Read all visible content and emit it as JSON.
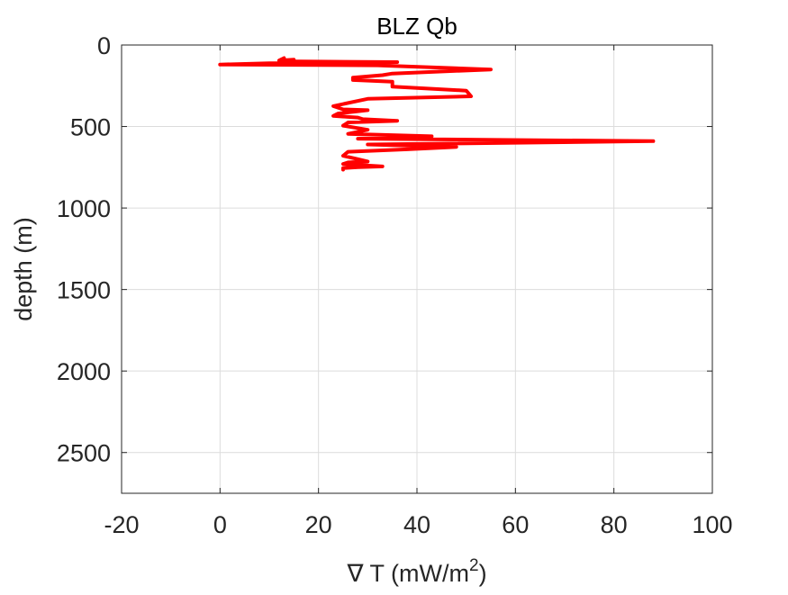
{
  "chart_data": {
    "type": "line",
    "title": "BLZ Qb",
    "xlabel": "∇ T (mW/m",
    "xlabel_sup": "2",
    "xlabel_suffix": ")",
    "ylabel": "depth (m)",
    "xlim": [
      -20,
      100
    ],
    "ylim": [
      0,
      2750
    ],
    "y_reversed": true,
    "x_ticks": [
      -20,
      0,
      20,
      40,
      60,
      80,
      100
    ],
    "x_tick_labels": [
      "-20",
      "0",
      "20",
      "40",
      "60",
      "80",
      "100"
    ],
    "y_ticks": [
      0,
      500,
      1000,
      1500,
      2000,
      2500
    ],
    "y_tick_labels": [
      "0",
      "500",
      "1000",
      "1500",
      "2000",
      "2500"
    ],
    "grid": true,
    "line_color": "#ff0000",
    "series": [
      {
        "x": [
          13,
          12,
          15,
          13,
          36,
          10,
          0,
          32,
          55,
          35,
          33,
          27,
          27,
          35,
          35,
          50,
          51,
          30,
          23,
          25,
          30,
          24,
          23,
          28,
          29,
          36,
          26,
          25,
          30,
          26,
          43,
          28,
          88,
          30,
          48,
          38,
          26,
          25,
          28,
          30,
          26,
          25,
          33,
          28,
          25,
          25
        ],
        "y": [
          80,
          95,
          90,
          100,
          105,
          112,
          120,
          125,
          150,
          175,
          185,
          200,
          215,
          225,
          255,
          280,
          315,
          330,
          375,
          395,
          400,
          420,
          435,
          445,
          455,
          465,
          475,
          495,
          520,
          545,
          560,
          575,
          590,
          610,
          625,
          640,
          655,
          680,
          700,
          715,
          720,
          730,
          745,
          750,
          755,
          765
        ]
      }
    ]
  }
}
